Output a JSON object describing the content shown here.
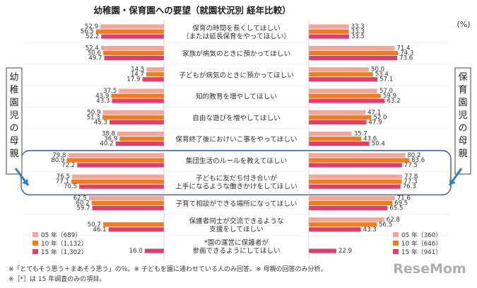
{
  "chart_data": {
    "type": "bar",
    "title": "幼稚園・保育園への要望（就園状況別 経年比較）",
    "unit": "(%)",
    "left_group_label": "幼稚園児の母親",
    "right_group_label": "保育園児の母親",
    "categories": [
      [
        "保育の時間を長くしてほしい",
        "（または延長保育をやってほしい）"
      ],
      [
        "家族が病気のときに預かってほしい"
      ],
      [
        "子どもが病気のときに預かってほしい"
      ],
      [
        "知的教育を増やしてほしい"
      ],
      [
        "自由な遊びを増やしてほしい"
      ],
      [
        "保育終了後におけいこ事をやってほしい"
      ],
      [
        "集団生活のルールを教えてほしい"
      ],
      [
        "子どもに友だち付き合いが",
        "上手になるような働きかけをしてほしい"
      ],
      [
        "子育て相談ができる場所になってほしい"
      ],
      [
        "保護者同士が交流できるような",
        "支援をしてほしい"
      ],
      [
        "*園の運営に保護者が",
        "参画できるようにしてほしい"
      ]
    ],
    "left_series": [
      {
        "name": "05 年（689）",
        "color": "#f2a79a",
        "values": [
          52.9,
          52.4,
          14.5,
          37.5,
          50.9,
          38.8,
          79.8,
          76.5,
          62.5,
          null,
          null
        ]
      },
      {
        "name": "10 年（1,132）",
        "color": "#ef7d20",
        "values": [
          56.5,
          50.6,
          14.7,
          43.9,
          51.3,
          36.9,
          80.9,
          77.1,
          60.2,
          50.7,
          null
        ]
      },
      {
        "name": "15 年（1,302）",
        "color": "#e23d6b",
        "values": [
          52.2,
          49.7,
          17.9,
          43.3,
          45.3,
          40.2,
          72.2,
          70.5,
          59.7,
          46.1,
          16.0
        ]
      }
    ],
    "right_series": [
      {
        "name": "05 年（360）",
        "color": "#f2a79a",
        "values": [
          33.3,
          71.4,
          50.0,
          57.0,
          47.1,
          35.7,
          80.2,
          77.8,
          71.6,
          62.8,
          null
        ]
      },
      {
        "name": "10 年（646）",
        "color": "#ef7d20",
        "values": [
          33.3,
          74.3,
          53.4,
          59.9,
          52.0,
          43.6,
          83.6,
          77.3,
          69.5,
          56.5,
          null
        ]
      },
      {
        "name": "15 年（941）",
        "color": "#e23d6b",
        "values": [
          33.5,
          73.6,
          57.1,
          63.2,
          47.9,
          50.4,
          77.5,
          76.3,
          65.5,
          43.3,
          22.9
        ]
      }
    ],
    "xlim": [
      0,
      100
    ],
    "grid": false,
    "legend_placement": "bottom"
  },
  "footnotes": [
    "※「とてもそう思う＋まあそう思う」の％。※ 子どもを園に通わせている人のみ回答。※ 母親の回答のみ分析。",
    "※［*］は 15 年調査のみの項目。"
  ],
  "watermark": "ReseMom",
  "colors": {
    "highlight_frame": "#2b4f7e",
    "arrow": "#2f7fc2",
    "label_text": "#333333"
  }
}
